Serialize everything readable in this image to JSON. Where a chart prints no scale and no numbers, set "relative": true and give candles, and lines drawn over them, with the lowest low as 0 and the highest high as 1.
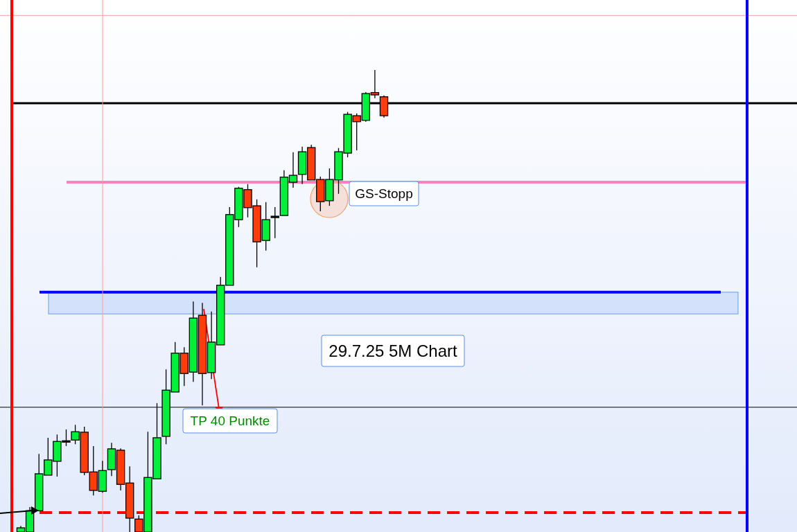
{
  "chart_data": {
    "type": "candlestick",
    "relative": true,
    "categories": [
      null,
      null,
      null,
      null,
      null,
      null,
      null,
      null,
      null,
      null,
      null,
      null,
      null,
      null,
      null,
      null,
      null,
      null,
      null,
      null,
      null,
      null,
      null,
      null,
      null,
      null,
      null,
      null,
      null,
      null,
      null,
      null,
      null,
      null,
      null,
      null,
      null,
      null,
      null,
      null,
      null
    ],
    "ohlc": [
      [
        0,
        0.013,
        0,
        0.009
      ],
      [
        0,
        0.054,
        0,
        0.046
      ],
      [
        0.046,
        0.169,
        0.046,
        0.126
      ],
      [
        0.123,
        0.204,
        0.123,
        0.156
      ],
      [
        0.153,
        0.211,
        0.12,
        0.196
      ],
      [
        0.196,
        0.222,
        0.186,
        0.196
      ],
      [
        0.199,
        0.232,
        0.19,
        0.217
      ],
      [
        0.216,
        0.228,
        0.123,
        0.129
      ],
      [
        0.13,
        0.186,
        0.079,
        0.09
      ],
      [
        0.088,
        0.154,
        0.085,
        0.133
      ],
      [
        0.135,
        0.193,
        0.121,
        0.18
      ],
      [
        0.177,
        0.181,
        0.09,
        0.103
      ],
      [
        0.106,
        0.142,
        0,
        0.03
      ],
      [
        0.028,
        0.036,
        0,
        0
      ],
      [
        0,
        0.217,
        0,
        0.118
      ],
      [
        0.115,
        0.279,
        0.115,
        0.204
      ],
      [
        0.207,
        0.352,
        0.19,
        0.307
      ],
      [
        0.303,
        0.411,
        0.303,
        0.387
      ],
      [
        0.387,
        0.4,
        0.316,
        0.343
      ],
      [
        0.346,
        0.499,
        0.325,
        0.463
      ],
      [
        0.469,
        0.496,
        0.274,
        0.343
      ],
      [
        0.345,
        0.477,
        0.331,
        0.411
      ],
      [
        0.405,
        0.552,
        0.405,
        0.534
      ],
      [
        0.534,
        0.703,
        0.534,
        0.687
      ],
      [
        0.676,
        0.747,
        0.66,
        0.744
      ],
      [
        0.741,
        0.753,
        0.681,
        0.702
      ],
      [
        0.706,
        0.72,
        0.573,
        0.628
      ],
      [
        0.631,
        0.714,
        0.609,
        0.676
      ],
      [
        0.682,
        0.703,
        0.636,
        0.682
      ],
      [
        0.685,
        0.783,
        0.685,
        0.768
      ],
      [
        0.757,
        0.822,
        0.745,
        0.772
      ],
      [
        0.774,
        0.834,
        0.753,
        0.823
      ],
      [
        0.832,
        0.838,
        0.762,
        0.762
      ],
      [
        0.763,
        0.769,
        0.694,
        0.715
      ],
      [
        0.717,
        0.787,
        0.706,
        0.763
      ],
      [
        0.762,
        0.831,
        0.732,
        0.823
      ],
      [
        0.82,
        0.909,
        0.811,
        0.904
      ],
      [
        0.901,
        0.906,
        0.826,
        0.888
      ],
      [
        0.891,
        0.952,
        0.888,
        0.949
      ],
      [
        0.951,
        1,
        0.939,
        0.946
      ],
      [
        0.942,
        0.945,
        0.897,
        0.901
      ]
    ],
    "colors": [
      "#00f03c",
      "#00f03c",
      "#00f03c",
      "#00f03c",
      "#00f03c",
      "#000000",
      "#00f03c",
      "#ff3d0a",
      "#ff3d0a",
      "#00f03c",
      "#00f03c",
      "#ff3d0a",
      "#ff3d0a",
      "#ff3d0a",
      "#00f03c",
      "#00f03c",
      "#00f03c",
      "#00f03c",
      "#ff3d0a",
      "#00f03c",
      "#ff3d0a",
      "#00f03c",
      "#00f03c",
      "#00f03c",
      "#00f03c",
      "#ff3d0a",
      "#ff3d0a",
      "#00f03c",
      "#000000",
      "#00f03c",
      "#00f03c",
      "#00f03c",
      "#ff3d0a",
      "#ff3d0a",
      "#00f03c",
      "#00f03c",
      "#00f03c",
      "#ff3d0a",
      "#00f03c",
      "#ff3d0a",
      "#ff3d0a"
    ],
    "ref_lines": [
      {
        "axis": "y",
        "value": 0.928,
        "color": "#000000",
        "line_style": "solid"
      },
      {
        "axis": "y",
        "value": 0.757,
        "color": "#ff80c0",
        "line_style": "solid"
      },
      {
        "axis": "y",
        "value": 0.519,
        "color": "#0000ff",
        "line_style": "solid"
      },
      {
        "axis": "y",
        "value": 0.27,
        "color": "#000000",
        "line_style": "solid"
      },
      {
        "axis": "y",
        "value": 0.042,
        "color": "#ff0000",
        "line_style": "dashed"
      },
      {
        "axis": "y",
        "value": 1.118,
        "color": "#ff9a9a",
        "line_style": "solid"
      }
    ],
    "bands": [
      {
        "axis": "y",
        "from": 0.472,
        "to": 0.519,
        "color": "#d3e1fb"
      }
    ],
    "annotations": [
      "GS-Stopp",
      "29.7.25 5M Chart",
      "TP 40 Punkte"
    ]
  }
}
